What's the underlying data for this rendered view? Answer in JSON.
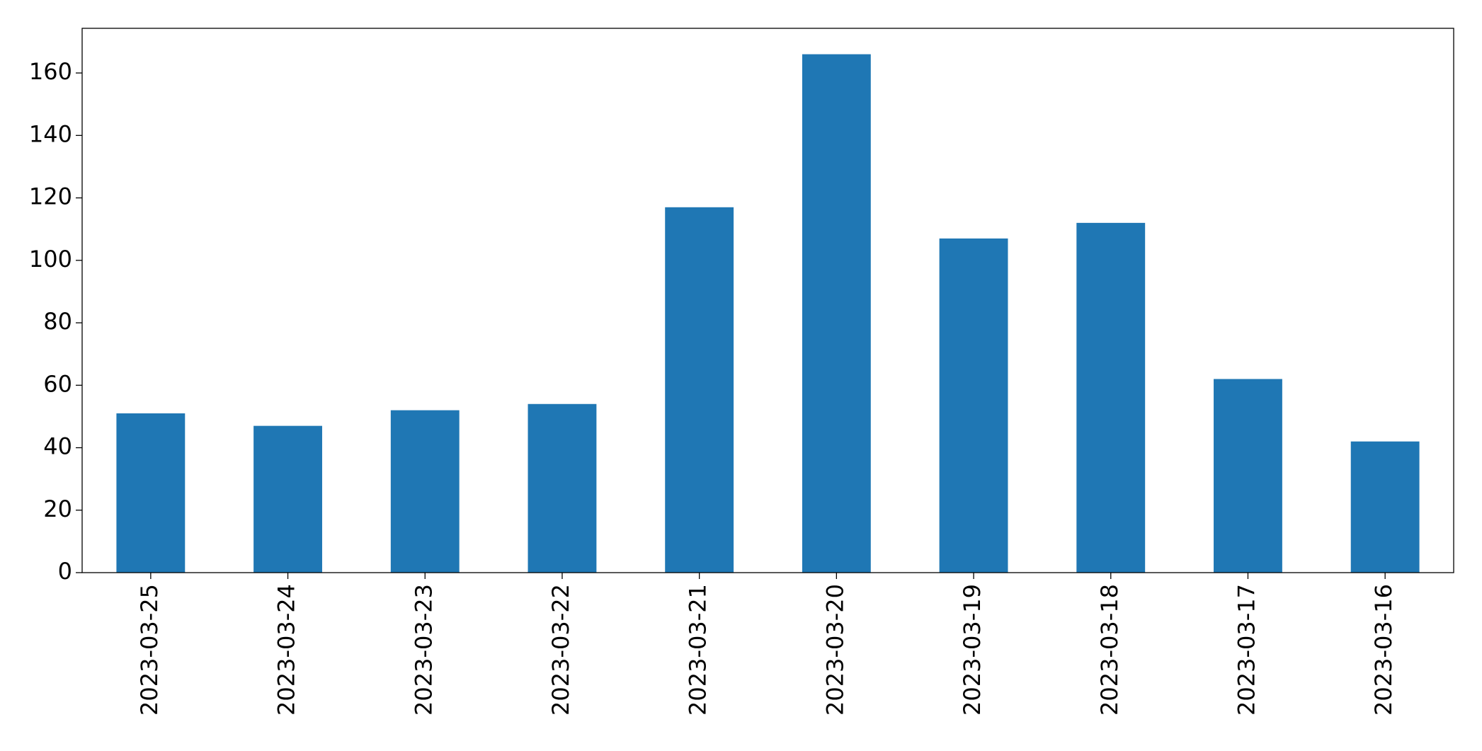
{
  "chart_data": {
    "type": "bar",
    "categories": [
      "2023-03-25",
      "2023-03-24",
      "2023-03-23",
      "2023-03-22",
      "2023-03-21",
      "2023-03-20",
      "2023-03-19",
      "2023-03-18",
      "2023-03-17",
      "2023-03-16"
    ],
    "values": [
      51,
      47,
      52,
      54,
      117,
      166,
      107,
      112,
      62,
      42
    ],
    "color": "#1f77b4",
    "ylim": [
      0,
      174.3
    ],
    "yticks": [
      0,
      20,
      40,
      60,
      80,
      100,
      120,
      140,
      160
    ],
    "grid": false
  }
}
